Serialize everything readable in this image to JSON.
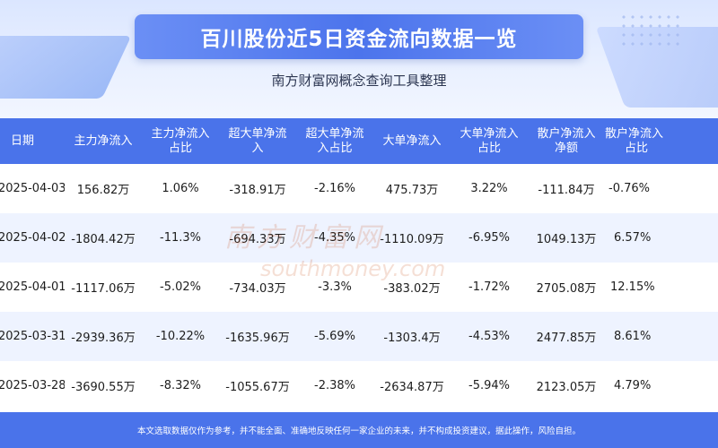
{
  "header": {
    "title": "百川股份近5日资金流向数据一览",
    "subtitle": "南方财富网概念查询工具整理"
  },
  "table": {
    "columns": [
      {
        "l1": "日期",
        "l2": ""
      },
      {
        "l1": "主力净流入",
        "l2": ""
      },
      {
        "l1": "主力净流入",
        "l2": "占比"
      },
      {
        "l1": "超大单净流",
        "l2": "入"
      },
      {
        "l1": "超大单净流",
        "l2": "入占比"
      },
      {
        "l1": "大单净流入",
        "l2": ""
      },
      {
        "l1": "大单净流入",
        "l2": "占比"
      },
      {
        "l1": "散户净流入",
        "l2": "净额"
      },
      {
        "l1": "散户净流入",
        "l2": "占比"
      }
    ],
    "rows": [
      [
        "2025-04-03",
        "156.82万",
        "1.06%",
        "-318.91万",
        "-2.16%",
        "475.73万",
        "3.22%",
        "-111.84万",
        "-0.76%"
      ],
      [
        "2025-04-02",
        "-1804.42万",
        "-11.3%",
        "-694.33万",
        "-4.35%",
        "-1110.09万",
        "-6.95%",
        "1049.13万",
        "6.57%"
      ],
      [
        "2025-04-01",
        "-1117.06万",
        "-5.02%",
        "-734.03万",
        "-3.3%",
        "-383.02万",
        "-1.72%",
        "2705.08万",
        "12.15%"
      ],
      [
        "2025-03-31",
        "-2939.36万",
        "-10.22%",
        "-1635.96万",
        "-5.69%",
        "-1303.4万",
        "-4.53%",
        "2477.85万",
        "8.61%"
      ],
      [
        "2025-03-28",
        "-3690.55万",
        "-8.32%",
        "-1055.67万",
        "-2.38%",
        "-2634.87万",
        "-5.94%",
        "2123.05万",
        "4.79%"
      ]
    ]
  },
  "watermark": {
    "cn": "南方财富网",
    "en": "southmoney.com"
  },
  "footer": {
    "text": "本文选取数据仅作为参考，并不能全面、准确地反映任何一家企业的未来，并不构成投资建议，据此操作，风险自担。"
  },
  "colors": {
    "header_blue": "#4a73ea",
    "row_alt": "#eef3ff",
    "title_box": "#4c74ec"
  }
}
